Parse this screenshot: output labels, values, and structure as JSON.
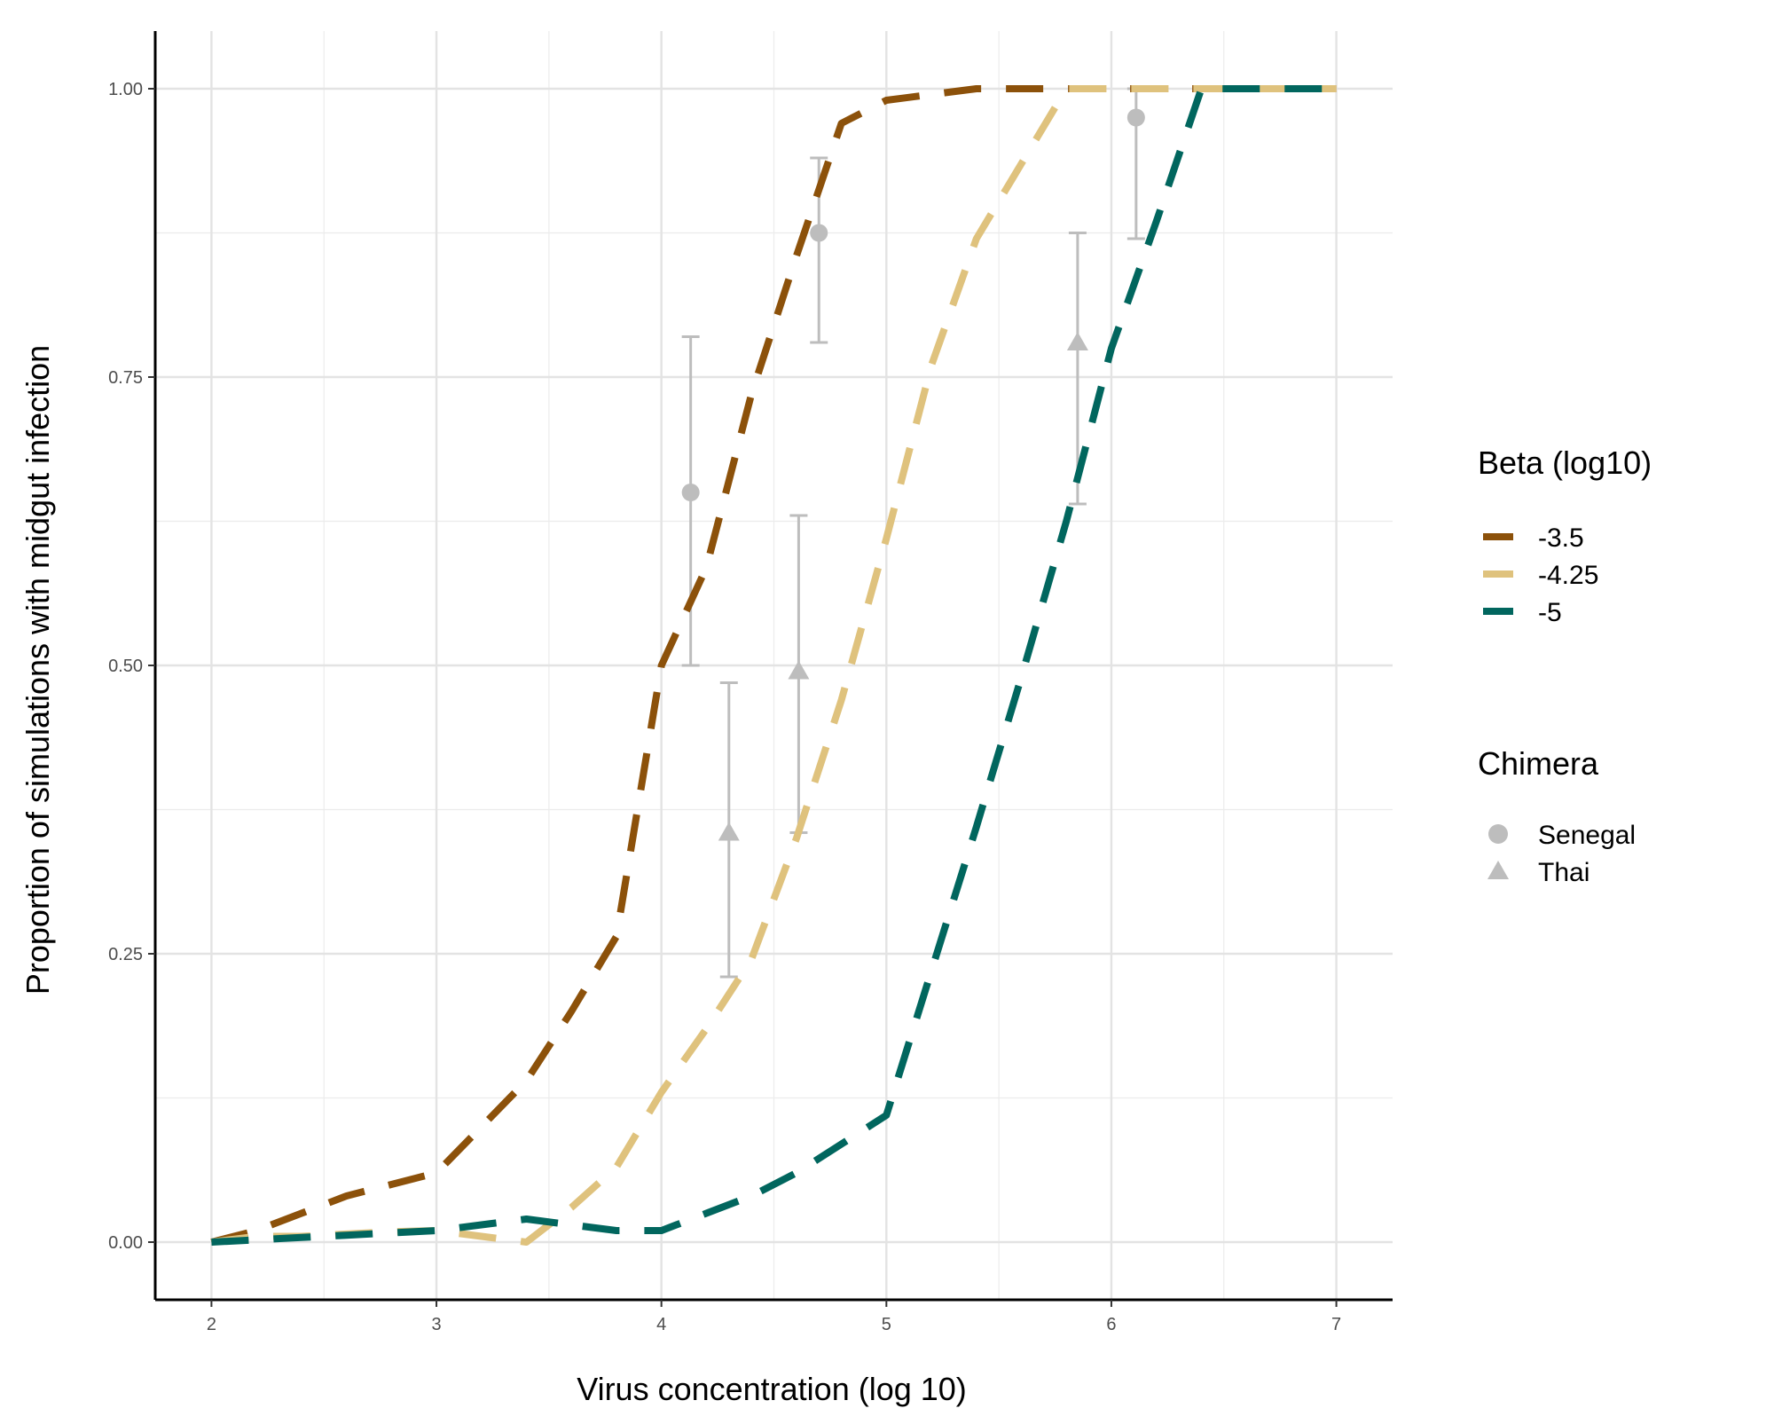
{
  "chart_data": {
    "type": "line",
    "xlabel": "Virus concentration (log 10)",
    "ylabel": "Proportion of simulations with midgut infection",
    "xlim": [
      1.75,
      7.25
    ],
    "ylim": [
      -0.05,
      1.05
    ],
    "x_ticks": [
      2,
      3,
      4,
      5,
      6,
      7
    ],
    "x_tick_labels": [
      "2",
      "3",
      "4",
      "5",
      "6",
      "7"
    ],
    "y_ticks": [
      0,
      0.25,
      0.5,
      0.75,
      1.0
    ],
    "y_tick_labels": [
      "0.00",
      "0.25",
      "0.50",
      "0.75",
      "1.00"
    ],
    "grid": true,
    "legend_position": "right",
    "line_legend_title": "Beta (log10)",
    "series": [
      {
        "name": "-3.5",
        "color": "#8c510a",
        "x": [
          2,
          2.2,
          2.4,
          2.6,
          2.8,
          3.0,
          3.2,
          3.4,
          3.6,
          3.8,
          4.0,
          4.2,
          4.4,
          4.6,
          4.8,
          5.0,
          5.2,
          5.4,
          5.6,
          5.8,
          6.0,
          6.2,
          6.4,
          6.6,
          6.8,
          7.0
        ],
        "values": [
          0.0,
          0.01,
          0.025,
          0.04,
          0.05,
          0.06,
          0.1,
          0.14,
          0.2,
          0.265,
          0.5,
          0.585,
          0.735,
          0.855,
          0.97,
          0.99,
          0.995,
          1.0,
          1.0,
          1.0,
          1.0,
          1.0,
          1.0,
          1.0,
          1.0,
          1.0
        ]
      },
      {
        "name": "-4.25",
        "color": "#dfc27d",
        "x": [
          2,
          2.2,
          2.4,
          2.6,
          2.8,
          3.0,
          3.2,
          3.4,
          3.6,
          3.8,
          4.0,
          4.2,
          4.4,
          4.6,
          4.8,
          5.0,
          5.2,
          5.4,
          5.6,
          5.8,
          6.0,
          6.2,
          6.4,
          6.6,
          6.8,
          7.0
        ],
        "values": [
          0.0,
          0.005,
          0.005,
          0.007,
          0.009,
          0.01,
          0.005,
          0.0,
          0.03,
          0.065,
          0.13,
          0.185,
          0.245,
          0.35,
          0.47,
          0.61,
          0.76,
          0.87,
          0.935,
          1.0,
          1.0,
          1.0,
          1.0,
          1.0,
          1.0,
          1.0
        ]
      },
      {
        "name": "-5",
        "color": "#01665e",
        "x": [
          2,
          2.2,
          2.4,
          2.6,
          2.8,
          3.0,
          3.2,
          3.4,
          3.6,
          3.8,
          4.0,
          4.2,
          4.4,
          4.6,
          4.8,
          5.0,
          5.2,
          5.4,
          5.6,
          5.8,
          6.0,
          6.2,
          6.4,
          6.6,
          6.8,
          7.0
        ],
        "values": [
          0.0,
          0.002,
          0.004,
          0.006,
          0.008,
          0.01,
          0.015,
          0.02,
          0.015,
          0.01,
          0.01,
          0.025,
          0.04,
          0.06,
          0.085,
          0.11,
          0.235,
          0.36,
          0.49,
          0.625,
          0.775,
          0.885,
          1.0,
          1.0,
          1.0,
          1.0
        ]
      }
    ],
    "points": {
      "legend_title": "Chimera",
      "color": "#bdbdbd",
      "groups": [
        {
          "name": "Senegal",
          "shape": "circle",
          "data": [
            {
              "x": 4.13,
              "y": 0.65,
              "ymin": 0.5,
              "ymax": 0.785
            },
            {
              "x": 4.7,
              "y": 0.875,
              "ymin": 0.78,
              "ymax": 0.94
            },
            {
              "x": 6.11,
              "y": 0.975,
              "ymin": 0.87,
              "ymax": 1.0
            }
          ]
        },
        {
          "name": "Thai",
          "shape": "triangle",
          "data": [
            {
              "x": 4.3,
              "y": 0.355,
              "ymin": 0.23,
              "ymax": 0.485
            },
            {
              "x": 4.61,
              "y": 0.495,
              "ymin": 0.355,
              "ymax": 0.63
            },
            {
              "x": 5.85,
              "y": 0.78,
              "ymin": 0.64,
              "ymax": 0.875
            }
          ]
        }
      ]
    }
  }
}
